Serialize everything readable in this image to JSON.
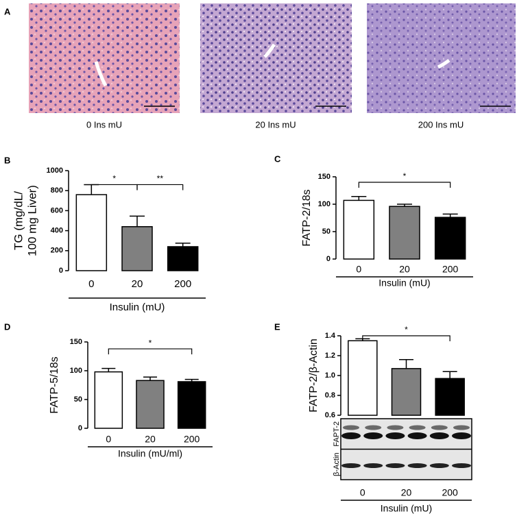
{
  "panel_a": {
    "label": "A",
    "captions": [
      "0 Ins mU",
      "20 Ins mU",
      "200 Ins mU"
    ]
  },
  "chart_data": [
    {
      "type": "bar",
      "panel": "B",
      "ylabel": [
        "TG (mg/dL/",
        "100 mg Liver)"
      ],
      "xlabel": "Insulin (mU)",
      "categories": [
        "0",
        "20",
        "200"
      ],
      "values": [
        760,
        440,
        240
      ],
      "errors": [
        100,
        105,
        35
      ],
      "colors": [
        "#ffffff",
        "#808080",
        "#000000"
      ],
      "ylim": [
        0,
        1000
      ],
      "yticks": [
        0,
        200,
        400,
        600,
        800,
        1000
      ],
      "significance": [
        {
          "label": "*",
          "from": "0",
          "to": "20",
          "y": 860
        },
        {
          "label": "**",
          "from": "20",
          "to": "200",
          "y": 860
        }
      ]
    },
    {
      "type": "bar",
      "panel": "C",
      "ylabel": [
        "FATP-2/18s"
      ],
      "xlabel": "Insulin (mU)",
      "categories": [
        "0",
        "20",
        "200"
      ],
      "values": [
        107,
        96,
        76
      ],
      "errors": [
        7,
        4,
        6
      ],
      "colors": [
        "#ffffff",
        "#808080",
        "#000000"
      ],
      "ylim": [
        0,
        150
      ],
      "yticks": [
        0,
        50,
        100,
        150
      ],
      "significance": [
        {
          "label": "*",
          "from": "0",
          "to": "200",
          "y": 140
        }
      ]
    },
    {
      "type": "bar",
      "panel": "D",
      "ylabel": [
        "FATP-5/18s"
      ],
      "xlabel": "Insulin (mU/ml)",
      "categories": [
        "0",
        "20",
        "200"
      ],
      "values": [
        98,
        83,
        81
      ],
      "errors": [
        6,
        6,
        4
      ],
      "colors": [
        "#ffffff",
        "#808080",
        "#000000"
      ],
      "ylim": [
        0,
        150
      ],
      "yticks": [
        0,
        50,
        100,
        150
      ],
      "significance": [
        {
          "label": "*",
          "from": "0",
          "to": "200",
          "y": 138
        }
      ]
    },
    {
      "type": "bar",
      "panel": "E",
      "ylabel": [
        "FATP-2/β-Actin"
      ],
      "xlabel": "Insulin (mU)",
      "categories": [
        "0",
        "20",
        "200"
      ],
      "values": [
        1.35,
        1.07,
        0.97
      ],
      "errors": [
        0.02,
        0.09,
        0.07
      ],
      "colors": [
        "#ffffff",
        "#808080",
        "#000000"
      ],
      "ylim": [
        0.6,
        1.4
      ],
      "yticks": [
        0.6,
        0.8,
        {
          "value": 1,
          "label": "1.0"
        },
        1.2,
        1.4
      ],
      "blot_labels": [
        "FAPT-2",
        "β-Actin"
      ],
      "significance": [
        {
          "label": "*",
          "from": "0",
          "to": "200",
          "y": 1.4
        }
      ]
    }
  ]
}
